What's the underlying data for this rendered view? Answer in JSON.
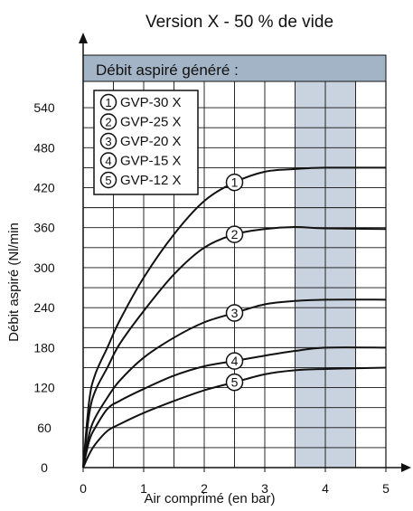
{
  "chart_data": {
    "type": "line",
    "title": "Version X - 50 % de vide",
    "subtitle": "Débit aspiré généré :",
    "xlabel": "Air comprimé (en bar)",
    "ylabel": "Débit aspiré (Nl/min",
    "xlim": [
      0,
      5
    ],
    "ylim": [
      0,
      570
    ],
    "x_ticks": [
      "0",
      "1",
      "2",
      "3",
      "4",
      "5"
    ],
    "y_ticks": [
      "0",
      "60",
      "120",
      "180",
      "240",
      "300",
      "360",
      "420",
      "480",
      "540"
    ],
    "highlight_range": [
      3.5,
      4.5
    ],
    "grid": true,
    "legend_position": "top-left",
    "series": [
      {
        "marker": "1",
        "name": "GVP-30 X",
        "x": [
          0,
          0.1,
          0.2,
          0.4,
          0.6,
          1.0,
          1.5,
          2.0,
          2.5,
          3.0,
          3.5,
          4.0,
          5.0
        ],
        "y": [
          0,
          100,
          140,
          180,
          220,
          285,
          350,
          400,
          428,
          444,
          448,
          450,
          450
        ]
      },
      {
        "marker": "2",
        "name": "GVP-25 X",
        "x": [
          0,
          0.1,
          0.2,
          0.4,
          0.6,
          1.0,
          1.5,
          2.0,
          2.5,
          3.0,
          3.5,
          4.0,
          5.0
        ],
        "y": [
          0,
          80,
          115,
          150,
          185,
          235,
          290,
          330,
          350,
          358,
          361,
          359,
          358
        ]
      },
      {
        "marker": "3",
        "name": "GVP-20 X",
        "x": [
          0,
          0.1,
          0.2,
          0.4,
          0.6,
          1.0,
          1.5,
          2.0,
          2.5,
          3.0,
          3.5,
          4.0,
          5.0
        ],
        "y": [
          0,
          50,
          75,
          105,
          130,
          165,
          195,
          218,
          232,
          245,
          250,
          252,
          252
        ]
      },
      {
        "marker": "4",
        "name": "GVP-15 X",
        "x": [
          0,
          0.1,
          0.2,
          0.4,
          0.6,
          1.0,
          1.5,
          2.0,
          2.5,
          3.0,
          3.5,
          4.0,
          5.0
        ],
        "y": [
          0,
          40,
          60,
          88,
          100,
          118,
          138,
          152,
          160,
          168,
          175,
          180,
          180
        ]
      },
      {
        "marker": "5",
        "name": "GVP-12 X",
        "x": [
          0,
          0.1,
          0.2,
          0.4,
          0.6,
          1.0,
          1.5,
          2.0,
          2.5,
          3.0,
          3.5,
          4.0,
          5.0
        ],
        "y": [
          0,
          20,
          35,
          55,
          65,
          82,
          100,
          116,
          128,
          140,
          146,
          148,
          150
        ]
      }
    ],
    "colors": {
      "line": "#111111",
      "band": "#c9d3df",
      "header": "#a2b4c5",
      "grid": "#111111"
    }
  }
}
